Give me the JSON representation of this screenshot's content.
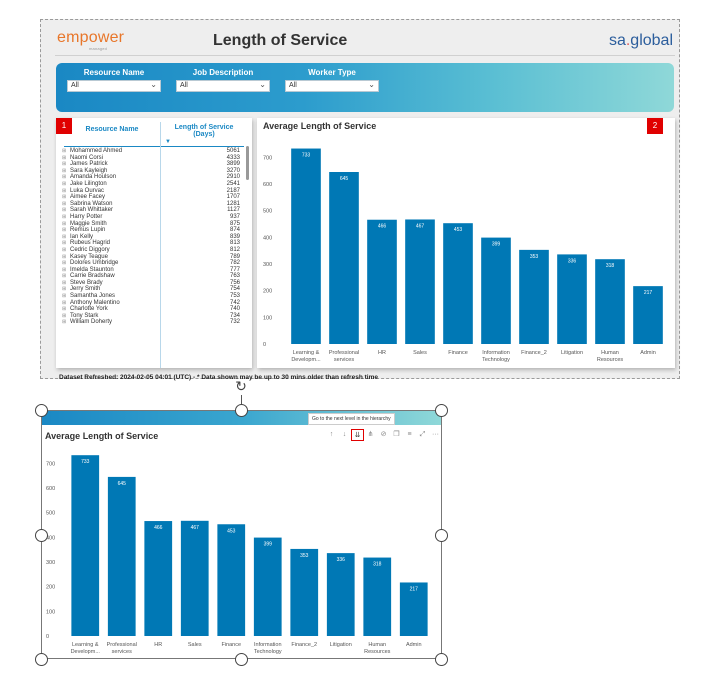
{
  "report": {
    "brand_left": "empower",
    "brand_left_tag": "managed",
    "title": "Length of Service",
    "brand_right_prefix": "sa",
    "brand_right_suffix": "global"
  },
  "filters": [
    {
      "label": "Resource Name",
      "value": "All"
    },
    {
      "label": "Job Description",
      "value": "All"
    },
    {
      "label": "Worker Type",
      "value": "All"
    }
  ],
  "table": {
    "badge": "1",
    "col1": "Resource Name",
    "col2": "Length of Service (Days)",
    "sort_icon": "sort-desc-icon",
    "rows": [
      {
        "name": "Mohammed Ahmed",
        "value": "5061"
      },
      {
        "name": "Naomi Corsi",
        "value": "4333"
      },
      {
        "name": "James Patrick",
        "value": "3899"
      },
      {
        "name": "Sara Kayleigh",
        "value": "3270"
      },
      {
        "name": "Amanda Houlson",
        "value": "2910"
      },
      {
        "name": "Jake Lilington",
        "value": "2541"
      },
      {
        "name": "Luka Ourvac",
        "value": "2187"
      },
      {
        "name": "Aimee Facey",
        "value": "1707"
      },
      {
        "name": "Sabrina Watson",
        "value": "1281"
      },
      {
        "name": "Sarah Whittaker",
        "value": "1127"
      },
      {
        "name": "Harry Potter",
        "value": "937"
      },
      {
        "name": "Maggie Smith",
        "value": "875"
      },
      {
        "name": "Remus Lupin",
        "value": "874"
      },
      {
        "name": "Ian Kelly",
        "value": "839"
      },
      {
        "name": "Rubeus Hagrid",
        "value": "813"
      },
      {
        "name": "Cedric Diggory",
        "value": "812"
      },
      {
        "name": "Kasey Teague",
        "value": "789"
      },
      {
        "name": "Dolores Umbridge",
        "value": "782"
      },
      {
        "name": "Imelda Staunton",
        "value": "777"
      },
      {
        "name": "Carrie Bradshaw",
        "value": "763"
      },
      {
        "name": "Steve Brady",
        "value": "756"
      },
      {
        "name": "Jerry Smith",
        "value": "754"
      },
      {
        "name": "Samantha Jones",
        "value": "753"
      },
      {
        "name": "Anthony Malentino",
        "value": "742"
      },
      {
        "name": "Charlotte York",
        "value": "740"
      },
      {
        "name": "Tony Stark",
        "value": "734"
      },
      {
        "name": "William Doherty",
        "value": "732"
      }
    ]
  },
  "chart_badge": "2",
  "chart_data": {
    "type": "bar",
    "title": "Average Length of Service",
    "categories": [
      "Learning & Developm...",
      "Professional services",
      "HR",
      "Sales",
      "Finance",
      "Information Technology",
      "Finance_2",
      "Litigation",
      "Human Resources",
      "Admin"
    ],
    "category_lines": [
      [
        "Learning &",
        "Developm..."
      ],
      [
        "Professional",
        "services"
      ],
      [
        "HR"
      ],
      [
        "Sales"
      ],
      [
        "Finance"
      ],
      [
        "Information",
        "Technology"
      ],
      [
        "Finance_2"
      ],
      [
        "Litigation"
      ],
      [
        "Human",
        "Resources"
      ],
      [
        "Admin"
      ]
    ],
    "values": [
      733,
      645,
      466,
      467,
      453,
      399,
      353,
      336,
      318,
      217
    ],
    "yticks": [
      0,
      100,
      200,
      300,
      400,
      500,
      600,
      700
    ],
    "ylim": [
      0,
      750
    ],
    "bar_color": "#0078b5",
    "label_color": "#ffffff"
  },
  "refresh_text": "Dataset Refreshed: 2024-02-05 04:01 (UTC) - * Data shown may be up to 30 mins older than refresh time",
  "focus": {
    "tooltip": "Go to the next level in the hierarchy",
    "toolbar": [
      {
        "icon": "drill-up-icon",
        "glyph": "↑",
        "active": false
      },
      {
        "icon": "drill-down-icon",
        "glyph": "↓",
        "active": false
      },
      {
        "icon": "next-level-icon",
        "glyph": "⇊",
        "active": true
      },
      {
        "icon": "expand-hierarchy-icon",
        "glyph": "⋔",
        "active": false
      },
      {
        "icon": "pin-icon",
        "glyph": "⊘",
        "active": false
      },
      {
        "icon": "copy-icon",
        "glyph": "❐",
        "active": false
      },
      {
        "icon": "filter-icon",
        "glyph": "≡",
        "active": false
      },
      {
        "icon": "focus-mode-icon",
        "glyph": "⤢",
        "active": false
      },
      {
        "icon": "more-options-icon",
        "glyph": "···",
        "active": false
      }
    ]
  }
}
